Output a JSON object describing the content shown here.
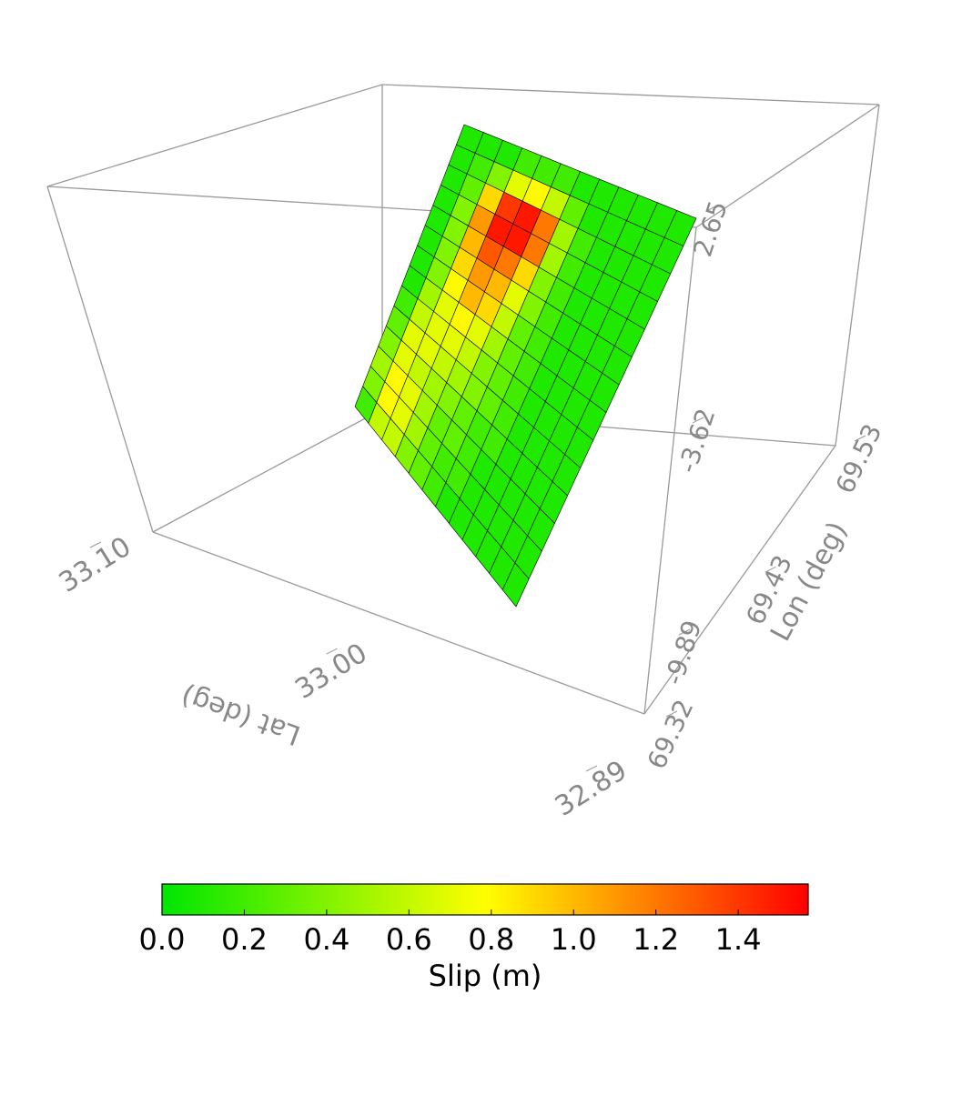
{
  "chart_data": {
    "type": "fault-surface3d",
    "xlabel": "Lat (deg)",
    "ylabel": "Lon (deg)",
    "xlim": [
      32.89,
      33.1
    ],
    "xticks": [
      {
        "value": 33.1,
        "label": "33.10"
      },
      {
        "value": 33.0,
        "label": "33.00"
      },
      32.89
    ],
    "ylim": [
      69.32,
      69.53
    ],
    "yticks": [
      69.32,
      69.43,
      69.53
    ],
    "zlim": [
      -9.89,
      2.65
    ],
    "zticks": [
      2.65,
      -3.62,
      -9.89
    ],
    "slip": [
      [
        0.1,
        0.1,
        0.1,
        0.2,
        0.2,
        0.2,
        0.1,
        0.1,
        0.1,
        0.1,
        0.1,
        0.1
      ],
      [
        0.1,
        0.2,
        0.4,
        0.7,
        0.8,
        0.6,
        0.3,
        0.1,
        0.1,
        0.1,
        0.1,
        0.1
      ],
      [
        0.1,
        0.3,
        0.9,
        1.4,
        1.5,
        1.2,
        0.5,
        0.2,
        0.1,
        0.1,
        0.1,
        0.1
      ],
      [
        0.1,
        0.4,
        1.1,
        1.5,
        1.5,
        1.2,
        0.5,
        0.2,
        0.1,
        0.1,
        0.1,
        0.1
      ],
      [
        0.1,
        0.4,
        1.0,
        1.3,
        1.2,
        0.9,
        0.4,
        0.2,
        0.1,
        0.1,
        0.1,
        0.1
      ],
      [
        0.1,
        0.4,
        0.9,
        1.1,
        1.0,
        0.7,
        0.4,
        0.2,
        0.1,
        0.1,
        0.1,
        0.1
      ],
      [
        0.1,
        0.4,
        0.8,
        1.0,
        0.9,
        0.6,
        0.3,
        0.2,
        0.1,
        0.1,
        0.1,
        0.1
      ],
      [
        0.1,
        0.5,
        0.7,
        0.8,
        0.7,
        0.5,
        0.3,
        0.2,
        0.1,
        0.1,
        0.1,
        0.1
      ],
      [
        0.2,
        0.6,
        0.7,
        0.7,
        0.6,
        0.4,
        0.3,
        0.2,
        0.1,
        0.1,
        0.1,
        0.1
      ],
      [
        0.3,
        0.7,
        0.7,
        0.6,
        0.5,
        0.4,
        0.3,
        0.2,
        0.1,
        0.1,
        0.1,
        0.1
      ],
      [
        0.4,
        0.7,
        0.6,
        0.5,
        0.4,
        0.3,
        0.2,
        0.2,
        0.1,
        0.1,
        0.1,
        0.1
      ],
      [
        0.5,
        0.8,
        0.7,
        0.5,
        0.3,
        0.3,
        0.2,
        0.1,
        0.1,
        0.1,
        0.1,
        0.1
      ],
      [
        0.4,
        0.8,
        0.7,
        0.5,
        0.3,
        0.2,
        0.2,
        0.1,
        0.1,
        0.1,
        0.1,
        0.1
      ],
      [
        0.2,
        0.6,
        0.6,
        0.4,
        0.3,
        0.2,
        0.1,
        0.1,
        0.1,
        0.1,
        0.1,
        0.1
      ]
    ],
    "colorbar": {
      "label": "Slip (m)",
      "clim": [
        0,
        1.57
      ],
      "colors": [
        "#00e600",
        "#ffff00",
        "#ff0000"
      ],
      "ticks": [
        {
          "value": 0,
          "label": "0.0"
        },
        0.2,
        0.4,
        0.6,
        0.8,
        {
          "value": 1,
          "label": "1.0"
        },
        1.2,
        1.4
      ]
    }
  }
}
